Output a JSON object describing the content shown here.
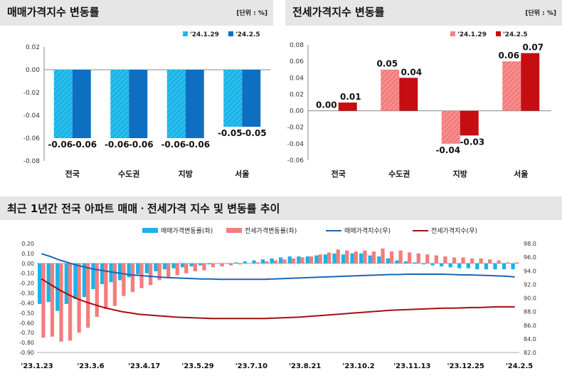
{
  "panel_left": {
    "title": "매매가격지수 변동률",
    "unit": "[단위 : %]"
  },
  "panel_right": {
    "title": "전세가격지수 변동률",
    "unit": "[단위 : %]"
  },
  "panel_bottom": {
    "title": "최근 1년간 전국 아파트 매매ㆍ전세가격 지수 및 변동률 추이"
  },
  "colors": {
    "sale_light": "#19b4e8",
    "sale_dark": "#0e6fc2",
    "jeonse_light": "#f47d7d",
    "jeonse_dark": "#c50d12",
    "sale_line": "#1a67b5",
    "jeonse_line": "#a30f12"
  },
  "chart_data": [
    {
      "type": "bar",
      "title": "매매가격지수 변동률",
      "categories": [
        "전국",
        "수도권",
        "지방",
        "서울"
      ],
      "series": [
        {
          "name": "'24.1.29",
          "values": [
            -0.06,
            -0.06,
            -0.06,
            -0.05
          ]
        },
        {
          "name": "'24.2.5",
          "values": [
            -0.06,
            -0.06,
            -0.06,
            -0.05
          ]
        }
      ],
      "ylim": [
        -0.08,
        0.02
      ],
      "yticks": [
        "0.02",
        "0.00",
        "-0.02",
        "-0.04",
        "-0.06",
        "-0.08"
      ],
      "data_labels": [
        [
          "-0.06",
          "-0.06"
        ],
        [
          "-0.06",
          "-0.06"
        ],
        [
          "-0.06",
          "-0.06"
        ],
        [
          "-0.05",
          "-0.05"
        ]
      ],
      "legend": "top-right"
    },
    {
      "type": "bar",
      "title": "전세가격지수 변동률",
      "categories": [
        "전국",
        "수도권",
        "지방",
        "서울"
      ],
      "series": [
        {
          "name": "'24.1.29",
          "values": [
            0.0,
            0.05,
            -0.04,
            0.06
          ]
        },
        {
          "name": "'24.2.5",
          "values": [
            0.01,
            0.04,
            -0.03,
            0.07
          ]
        }
      ],
      "ylim": [
        -0.06,
        0.08
      ],
      "yticks": [
        "0.08",
        "0.06",
        "0.04",
        "0.02",
        "0.00",
        "-0.02",
        "-0.04",
        "-0.06"
      ],
      "data_labels": [
        [
          "0.00",
          "0.01"
        ],
        [
          "0.05",
          "0.04"
        ],
        [
          "-0.04",
          "-0.03"
        ],
        [
          "0.06",
          "0.07"
        ]
      ],
      "legend": "top-right"
    },
    {
      "type": "bar",
      "title": "최근 1년간 전국 아파트 매매ㆍ전세가격 지수 및 변동률 추이",
      "x_labels": [
        "'23.1.23",
        "'23.3.6",
        "'23.4.17",
        "'23.5.29",
        "'23.7.10",
        "'23.8.21",
        "'23.10.2",
        "'23.11.13",
        "'23.12.25",
        "'24.2.5"
      ],
      "legend_labels": [
        "매매가격변동률(좌)",
        "전세가격변동률(좌)",
        "매매가격지수(우)",
        "전세가격지수(우)"
      ],
      "legend": "top",
      "left_ylim": [
        -0.9,
        0.2
      ],
      "left_yticks": [
        "0.20",
        "0.10",
        "0.00",
        "-0.10",
        "-0.20",
        "-0.30",
        "-0.40",
        "-0.50",
        "-0.60",
        "-0.70",
        "-0.80",
        "-0.90"
      ],
      "right_ylim": [
        82.0,
        98.0
      ],
      "right_yticks": [
        "98.0",
        "96.0",
        "94.0",
        "92.0",
        "90.0",
        "88.0",
        "86.0",
        "84.0",
        "82.0"
      ],
      "series": [
        {
          "name": "매매가격변동률(좌)",
          "values": [
            -0.41,
            -0.39,
            -0.48,
            -0.41,
            -0.36,
            -0.34,
            -0.26,
            -0.21,
            -0.19,
            -0.17,
            -0.14,
            -0.11,
            -0.1,
            -0.08,
            -0.06,
            -0.05,
            -0.04,
            -0.03,
            -0.02,
            -0.01,
            0.0,
            0.0,
            0.01,
            0.02,
            0.03,
            0.04,
            0.05,
            0.06,
            0.07,
            0.07,
            0.07,
            0.08,
            0.09,
            0.1,
            0.09,
            0.1,
            0.1,
            0.08,
            0.07,
            0.05,
            0.03,
            0.02,
            0.01,
            -0.01,
            -0.02,
            -0.03,
            -0.04,
            -0.05,
            -0.05,
            -0.06,
            -0.06,
            -0.06,
            -0.06,
            -0.06
          ]
        },
        {
          "name": "전세가격변동률(좌)",
          "values": [
            -0.75,
            -0.74,
            -0.79,
            -0.78,
            -0.7,
            -0.65,
            -0.54,
            -0.46,
            -0.43,
            -0.33,
            -0.29,
            -0.25,
            -0.22,
            -0.17,
            -0.15,
            -0.12,
            -0.1,
            -0.08,
            -0.07,
            -0.04,
            -0.03,
            -0.02,
            -0.01,
            0.0,
            0.01,
            0.02,
            0.03,
            0.04,
            0.05,
            0.06,
            0.07,
            0.09,
            0.11,
            0.14,
            0.13,
            0.12,
            0.13,
            0.12,
            0.15,
            0.12,
            0.13,
            0.11,
            0.1,
            0.09,
            0.08,
            0.07,
            0.06,
            0.06,
            0.05,
            0.05,
            0.04,
            0.03,
            0.01,
            0.01
          ]
        },
        {
          "name": "매매가격지수(우)",
          "values": [
            96.5,
            96.1,
            95.6,
            95.2,
            94.8,
            94.5,
            94.2,
            94.0,
            93.8,
            93.6,
            93.4,
            93.3,
            93.2,
            93.1,
            93.0,
            92.95,
            92.9,
            92.85,
            92.8,
            92.8,
            92.75,
            92.75,
            92.75,
            92.75,
            92.75,
            92.75,
            92.8,
            92.85,
            92.9,
            92.95,
            93.0,
            93.05,
            93.1,
            93.15,
            93.2,
            93.25,
            93.3,
            93.35,
            93.4,
            93.45,
            93.45,
            93.5,
            93.5,
            93.5,
            93.5,
            93.5,
            93.45,
            93.4,
            93.4,
            93.35,
            93.3,
            93.25,
            93.2,
            93.1
          ]
        },
        {
          "name": "전세가격지수(우)",
          "values": [
            92.8,
            92.0,
            91.2,
            90.5,
            89.9,
            89.4,
            89.0,
            88.6,
            88.3,
            88.0,
            87.8,
            87.6,
            87.5,
            87.4,
            87.3,
            87.2,
            87.15,
            87.1,
            87.05,
            87.0,
            87.0,
            87.0,
            87.0,
            87.0,
            87.0,
            87.0,
            87.05,
            87.1,
            87.15,
            87.2,
            87.3,
            87.4,
            87.5,
            87.6,
            87.7,
            87.8,
            87.9,
            88.0,
            88.1,
            88.2,
            88.25,
            88.3,
            88.35,
            88.4,
            88.45,
            88.5,
            88.5,
            88.55,
            88.6,
            88.6,
            88.65,
            88.7,
            88.7,
            88.7
          ]
        }
      ]
    }
  ]
}
